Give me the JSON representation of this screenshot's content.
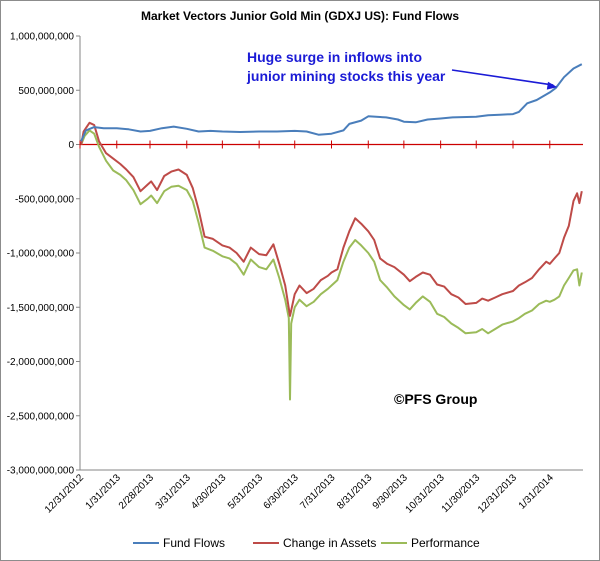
{
  "chart_data": {
    "type": "line",
    "title": "Market Vectors Junior Gold Min (GDXJ US): Fund Flows",
    "ylim": [
      -3000000000,
      1000000000
    ],
    "ytick_values": [
      1000000000,
      500000000,
      0,
      -500000000,
      -1000000000,
      -1500000000,
      -2000000000,
      -2500000000,
      -3000000000
    ],
    "ytick_labels": [
      "1,000,000,000",
      "500,000,000",
      "0",
      "-500,000,000",
      "-1,000,000,000",
      "-1,500,000,000",
      "-2,000,000,000",
      "-2,500,000,000",
      "-3,000,000,000"
    ],
    "x_start": "2012-12-31",
    "x_end": "2014-02-28",
    "xtick_dates": [
      "2012-12-31",
      "2013-01-31",
      "2013-02-28",
      "2013-03-31",
      "2013-04-30",
      "2013-05-31",
      "2013-06-30",
      "2013-07-31",
      "2013-08-31",
      "2013-09-30",
      "2013-10-31",
      "2013-11-30",
      "2013-12-31",
      "2014-01-31"
    ],
    "xtick_labels": [
      "12/31/2012",
      "1/31/2013",
      "2/28/2013",
      "3/31/2013",
      "4/30/2013",
      "5/31/2013",
      "6/30/2013",
      "7/31/2013",
      "8/31/2013",
      "9/30/2013",
      "10/31/2013",
      "11/30/2013",
      "12/31/2013",
      "1/31/2014"
    ],
    "series": [
      {
        "name": "Fund Flows",
        "color": "#4a7ebb",
        "points": [
          [
            "2013-01-01",
            30000000
          ],
          [
            "2013-01-05",
            130000000
          ],
          [
            "2013-01-12",
            160000000
          ],
          [
            "2013-01-20",
            150000000
          ],
          [
            "2013-01-31",
            150000000
          ],
          [
            "2013-02-10",
            140000000
          ],
          [
            "2013-02-20",
            120000000
          ],
          [
            "2013-02-28",
            125000000
          ],
          [
            "2013-03-10",
            150000000
          ],
          [
            "2013-03-20",
            165000000
          ],
          [
            "2013-03-31",
            145000000
          ],
          [
            "2013-04-10",
            120000000
          ],
          [
            "2013-04-20",
            125000000
          ],
          [
            "2013-04-30",
            120000000
          ],
          [
            "2013-05-15",
            115000000
          ],
          [
            "2013-05-31",
            120000000
          ],
          [
            "2013-06-15",
            120000000
          ],
          [
            "2013-06-30",
            125000000
          ],
          [
            "2013-07-10",
            120000000
          ],
          [
            "2013-07-20",
            90000000
          ],
          [
            "2013-07-31",
            100000000
          ],
          [
            "2013-08-10",
            130000000
          ],
          [
            "2013-08-15",
            190000000
          ],
          [
            "2013-08-25",
            220000000
          ],
          [
            "2013-08-31",
            260000000
          ],
          [
            "2013-09-15",
            250000000
          ],
          [
            "2013-09-25",
            230000000
          ],
          [
            "2013-09-30",
            210000000
          ],
          [
            "2013-10-10",
            205000000
          ],
          [
            "2013-10-20",
            230000000
          ],
          [
            "2013-10-31",
            240000000
          ],
          [
            "2013-11-10",
            250000000
          ],
          [
            "2013-11-30",
            255000000
          ],
          [
            "2013-12-10",
            270000000
          ],
          [
            "2013-12-20",
            275000000
          ],
          [
            "2013-12-31",
            280000000
          ],
          [
            "2014-01-05",
            300000000
          ],
          [
            "2014-01-12",
            380000000
          ],
          [
            "2014-01-20",
            410000000
          ],
          [
            "2014-01-31",
            480000000
          ],
          [
            "2014-02-05",
            520000000
          ],
          [
            "2014-02-12",
            620000000
          ],
          [
            "2014-02-20",
            700000000
          ],
          [
            "2014-02-27",
            740000000
          ]
        ]
      },
      {
        "name": "Change in Assets",
        "color": "#be4b48",
        "points": [
          [
            "2013-01-01",
            0
          ],
          [
            "2013-01-03",
            120000000
          ],
          [
            "2013-01-08",
            200000000
          ],
          [
            "2013-01-12",
            180000000
          ],
          [
            "2013-01-16",
            30000000
          ],
          [
            "2013-01-22",
            -80000000
          ],
          [
            "2013-01-28",
            -130000000
          ],
          [
            "2013-02-03",
            -180000000
          ],
          [
            "2013-02-08",
            -230000000
          ],
          [
            "2013-02-14",
            -300000000
          ],
          [
            "2013-02-20",
            -430000000
          ],
          [
            "2013-02-26",
            -370000000
          ],
          [
            "2013-03-01",
            -340000000
          ],
          [
            "2013-03-06",
            -420000000
          ],
          [
            "2013-03-12",
            -290000000
          ],
          [
            "2013-03-18",
            -250000000
          ],
          [
            "2013-03-24",
            -230000000
          ],
          [
            "2013-03-31",
            -280000000
          ],
          [
            "2013-04-05",
            -400000000
          ],
          [
            "2013-04-10",
            -600000000
          ],
          [
            "2013-04-15",
            -850000000
          ],
          [
            "2013-04-22",
            -870000000
          ],
          [
            "2013-04-30",
            -930000000
          ],
          [
            "2013-05-06",
            -950000000
          ],
          [
            "2013-05-12",
            -1000000000
          ],
          [
            "2013-05-18",
            -1080000000
          ],
          [
            "2013-05-24",
            -950000000
          ],
          [
            "2013-05-31",
            -1010000000
          ],
          [
            "2013-06-06",
            -1020000000
          ],
          [
            "2013-06-12",
            -920000000
          ],
          [
            "2013-06-17",
            -1100000000
          ],
          [
            "2013-06-22",
            -1300000000
          ],
          [
            "2013-06-26",
            -1580000000
          ],
          [
            "2013-06-30",
            -1380000000
          ],
          [
            "2013-07-04",
            -1300000000
          ],
          [
            "2013-07-10",
            -1370000000
          ],
          [
            "2013-07-16",
            -1330000000
          ],
          [
            "2013-07-22",
            -1250000000
          ],
          [
            "2013-07-28",
            -1210000000
          ],
          [
            "2013-07-31",
            -1180000000
          ],
          [
            "2013-08-05",
            -1150000000
          ],
          [
            "2013-08-10",
            -950000000
          ],
          [
            "2013-08-15",
            -800000000
          ],
          [
            "2013-08-20",
            -680000000
          ],
          [
            "2013-08-25",
            -730000000
          ],
          [
            "2013-08-31",
            -800000000
          ],
          [
            "2013-09-05",
            -880000000
          ],
          [
            "2013-09-10",
            -1050000000
          ],
          [
            "2013-09-16",
            -1100000000
          ],
          [
            "2013-09-22",
            -1130000000
          ],
          [
            "2013-09-30",
            -1200000000
          ],
          [
            "2013-10-05",
            -1260000000
          ],
          [
            "2013-10-10",
            -1220000000
          ],
          [
            "2013-10-16",
            -1180000000
          ],
          [
            "2013-10-22",
            -1200000000
          ],
          [
            "2013-10-28",
            -1290000000
          ],
          [
            "2013-11-03",
            -1310000000
          ],
          [
            "2013-11-09",
            -1380000000
          ],
          [
            "2013-11-15",
            -1410000000
          ],
          [
            "2013-11-21",
            -1470000000
          ],
          [
            "2013-11-30",
            -1460000000
          ],
          [
            "2013-12-05",
            -1420000000
          ],
          [
            "2013-12-10",
            -1440000000
          ],
          [
            "2013-12-16",
            -1410000000
          ],
          [
            "2013-12-22",
            -1380000000
          ],
          [
            "2013-12-31",
            -1350000000
          ],
          [
            "2014-01-05",
            -1300000000
          ],
          [
            "2014-01-10",
            -1270000000
          ],
          [
            "2014-01-16",
            -1230000000
          ],
          [
            "2014-01-22",
            -1150000000
          ],
          [
            "2014-01-28",
            -1080000000
          ],
          [
            "2014-01-31",
            -1100000000
          ],
          [
            "2014-02-04",
            -1050000000
          ],
          [
            "2014-02-08",
            -1000000000
          ],
          [
            "2014-02-12",
            -860000000
          ],
          [
            "2014-02-16",
            -750000000
          ],
          [
            "2014-02-20",
            -520000000
          ],
          [
            "2014-02-23",
            -450000000
          ],
          [
            "2014-02-25",
            -540000000
          ],
          [
            "2014-02-27",
            -430000000
          ]
        ]
      },
      {
        "name": "Performance",
        "color": "#9bbb59",
        "points": [
          [
            "2013-01-01",
            0
          ],
          [
            "2013-01-04",
            80000000
          ],
          [
            "2013-01-08",
            130000000
          ],
          [
            "2013-01-12",
            100000000
          ],
          [
            "2013-01-16",
            -20000000
          ],
          [
            "2013-01-22",
            -150000000
          ],
          [
            "2013-01-28",
            -240000000
          ],
          [
            "2013-02-03",
            -280000000
          ],
          [
            "2013-02-08",
            -330000000
          ],
          [
            "2013-02-14",
            -420000000
          ],
          [
            "2013-02-20",
            -550000000
          ],
          [
            "2013-02-26",
            -500000000
          ],
          [
            "2013-03-01",
            -470000000
          ],
          [
            "2013-03-06",
            -540000000
          ],
          [
            "2013-03-12",
            -430000000
          ],
          [
            "2013-03-18",
            -390000000
          ],
          [
            "2013-03-24",
            -380000000
          ],
          [
            "2013-03-31",
            -420000000
          ],
          [
            "2013-04-05",
            -520000000
          ],
          [
            "2013-04-10",
            -720000000
          ],
          [
            "2013-04-15",
            -950000000
          ],
          [
            "2013-04-22",
            -980000000
          ],
          [
            "2013-04-30",
            -1030000000
          ],
          [
            "2013-05-06",
            -1050000000
          ],
          [
            "2013-05-12",
            -1100000000
          ],
          [
            "2013-05-18",
            -1200000000
          ],
          [
            "2013-05-24",
            -1060000000
          ],
          [
            "2013-05-31",
            -1130000000
          ],
          [
            "2013-06-06",
            -1150000000
          ],
          [
            "2013-06-12",
            -1060000000
          ],
          [
            "2013-06-17",
            -1230000000
          ],
          [
            "2013-06-22",
            -1430000000
          ],
          [
            "2013-06-25",
            -1600000000
          ],
          [
            "2013-06-26",
            -2350000000
          ],
          [
            "2013-06-27",
            -1650000000
          ],
          [
            "2013-06-30",
            -1500000000
          ],
          [
            "2013-07-04",
            -1430000000
          ],
          [
            "2013-07-10",
            -1490000000
          ],
          [
            "2013-07-16",
            -1450000000
          ],
          [
            "2013-07-22",
            -1380000000
          ],
          [
            "2013-07-28",
            -1330000000
          ],
          [
            "2013-07-31",
            -1300000000
          ],
          [
            "2013-08-05",
            -1250000000
          ],
          [
            "2013-08-10",
            -1080000000
          ],
          [
            "2013-08-15",
            -950000000
          ],
          [
            "2013-08-20",
            -880000000
          ],
          [
            "2013-08-25",
            -930000000
          ],
          [
            "2013-08-31",
            -1000000000
          ],
          [
            "2013-09-05",
            -1080000000
          ],
          [
            "2013-09-10",
            -1250000000
          ],
          [
            "2013-09-16",
            -1320000000
          ],
          [
            "2013-09-22",
            -1400000000
          ],
          [
            "2013-09-30",
            -1480000000
          ],
          [
            "2013-10-05",
            -1520000000
          ],
          [
            "2013-10-10",
            -1460000000
          ],
          [
            "2013-10-16",
            -1400000000
          ],
          [
            "2013-10-22",
            -1450000000
          ],
          [
            "2013-10-28",
            -1560000000
          ],
          [
            "2013-11-03",
            -1590000000
          ],
          [
            "2013-11-09",
            -1650000000
          ],
          [
            "2013-11-15",
            -1690000000
          ],
          [
            "2013-11-21",
            -1740000000
          ],
          [
            "2013-11-30",
            -1730000000
          ],
          [
            "2013-12-05",
            -1700000000
          ],
          [
            "2013-12-10",
            -1740000000
          ],
          [
            "2013-12-16",
            -1700000000
          ],
          [
            "2013-12-22",
            -1660000000
          ],
          [
            "2013-12-31",
            -1630000000
          ],
          [
            "2014-01-05",
            -1600000000
          ],
          [
            "2014-01-10",
            -1560000000
          ],
          [
            "2014-01-16",
            -1530000000
          ],
          [
            "2014-01-22",
            -1470000000
          ],
          [
            "2014-01-28",
            -1440000000
          ],
          [
            "2014-01-31",
            -1450000000
          ],
          [
            "2014-02-04",
            -1430000000
          ],
          [
            "2014-02-08",
            -1400000000
          ],
          [
            "2014-02-12",
            -1300000000
          ],
          [
            "2014-02-16",
            -1230000000
          ],
          [
            "2014-02-20",
            -1160000000
          ],
          [
            "2014-02-23",
            -1150000000
          ],
          [
            "2014-02-25",
            -1300000000
          ],
          [
            "2014-02-27",
            -1180000000
          ]
        ]
      }
    ],
    "annotations": [
      {
        "text_lines": [
          "Huge surge in inflows into",
          "junior mining stocks this year"
        ],
        "color": "#1b1bd6",
        "arrow_to": [
          "2014-02-08",
          520000000
        ]
      },
      {
        "text_lines": [
          "©PFS Group"
        ],
        "color": "#000000"
      }
    ],
    "legend_position": "bottom",
    "grid": false
  }
}
